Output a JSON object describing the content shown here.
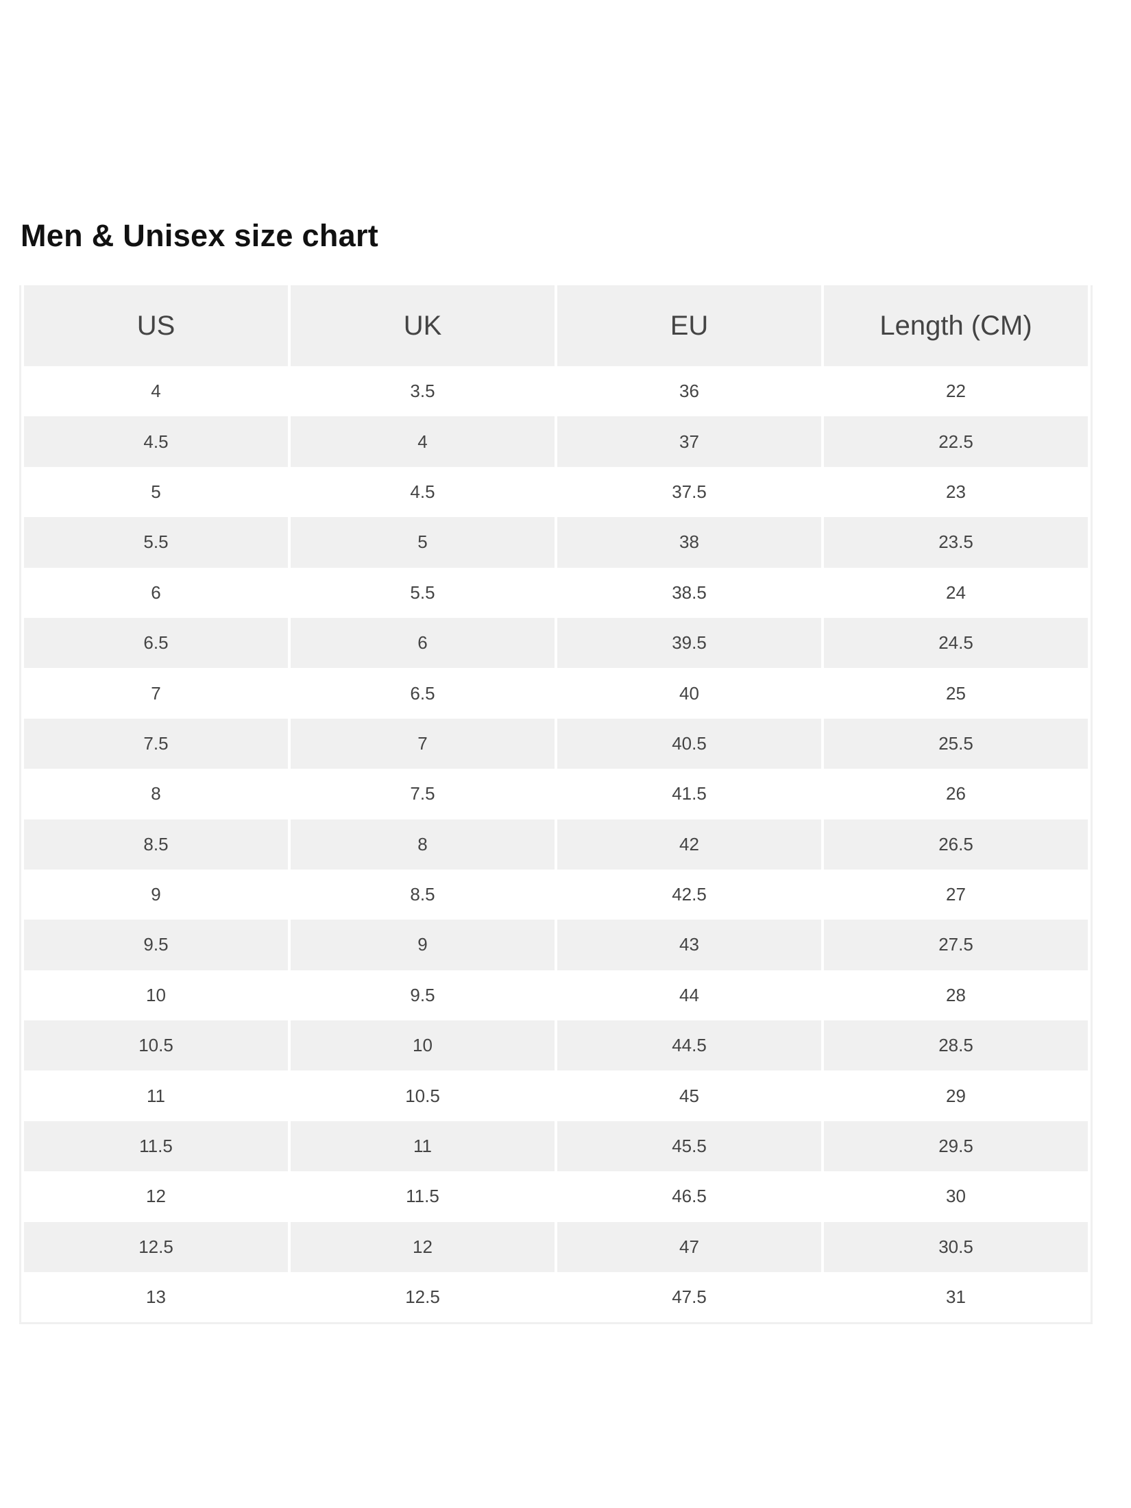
{
  "title": "Men & Unisex size chart",
  "table": {
    "headers": [
      "US",
      "UK",
      "EU",
      "Length (CM)"
    ],
    "rows": [
      [
        "4",
        "3.5",
        "36",
        "22"
      ],
      [
        "4.5",
        "4",
        "37",
        "22.5"
      ],
      [
        "5",
        "4.5",
        "37.5",
        "23"
      ],
      [
        "5.5",
        "5",
        "38",
        "23.5"
      ],
      [
        "6",
        "5.5",
        "38.5",
        "24"
      ],
      [
        "6.5",
        "6",
        "39.5",
        "24.5"
      ],
      [
        "7",
        "6.5",
        "40",
        "25"
      ],
      [
        "7.5",
        "7",
        "40.5",
        "25.5"
      ],
      [
        "8",
        "7.5",
        "41.5",
        "26"
      ],
      [
        "8.5",
        "8",
        "42",
        "26.5"
      ],
      [
        "9",
        "8.5",
        "42.5",
        "27"
      ],
      [
        "9.5",
        "9",
        "43",
        "27.5"
      ],
      [
        "10",
        "9.5",
        "44",
        "28"
      ],
      [
        "10.5",
        "10",
        "44.5",
        "28.5"
      ],
      [
        "11",
        "10.5",
        "45",
        "29"
      ],
      [
        "11.5",
        "11",
        "45.5",
        "29.5"
      ],
      [
        "12",
        "11.5",
        "46.5",
        "30"
      ],
      [
        "12.5",
        "12",
        "47",
        "30.5"
      ],
      [
        "13",
        "12.5",
        "47.5",
        "31"
      ]
    ]
  },
  "colors": {
    "header_bg": "#f0f0f0",
    "stripe_bg": "#f0f0f0",
    "text": "#444444",
    "title": "#111111"
  }
}
